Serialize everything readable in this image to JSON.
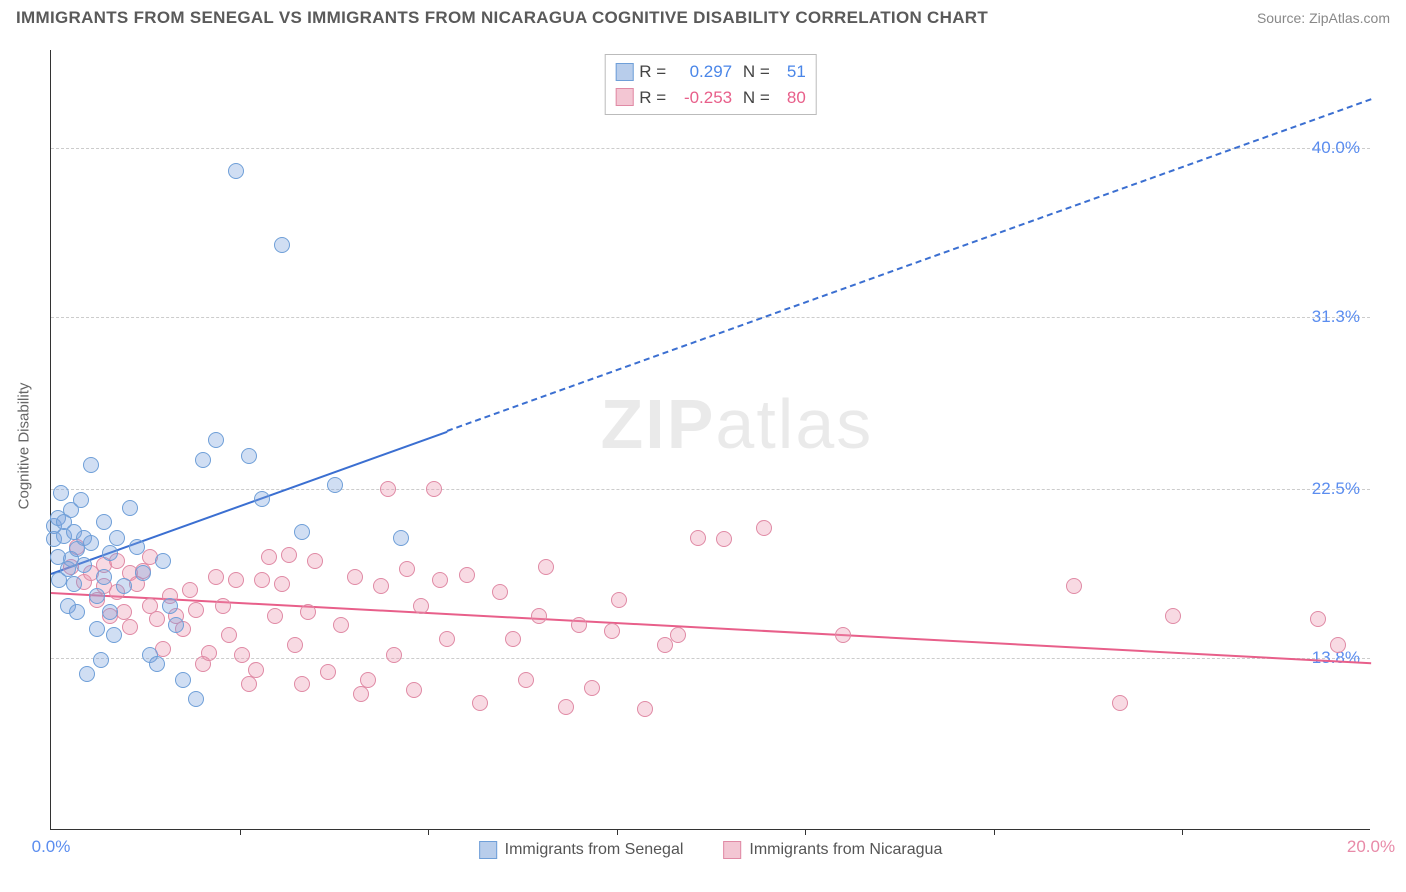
{
  "title": "IMMIGRANTS FROM SENEGAL VS IMMIGRANTS FROM NICARAGUA COGNITIVE DISABILITY CORRELATION CHART",
  "source": "Source: ZipAtlas.com",
  "ylabel": "Cognitive Disability",
  "watermark_bold": "ZIP",
  "watermark_light": "atlas",
  "xlim": [
    0,
    20
  ],
  "ylim": [
    5,
    45
  ],
  "xtick_labels": [
    "0.0%",
    "20.0%"
  ],
  "xtick_positions": [
    0,
    20
  ],
  "xtick_marks": [
    2.857,
    5.714,
    8.571,
    11.429,
    14.286,
    17.143
  ],
  "ytick_labels": [
    "13.8%",
    "22.5%",
    "31.3%",
    "40.0%"
  ],
  "ytick_positions": [
    13.8,
    22.5,
    31.3,
    40.0
  ],
  "ytick_color": "#5b8def",
  "xtick_color_start": "#5b8def",
  "xtick_color_end": "#e88aa8",
  "grid_color": "#cccccc",
  "series": {
    "senegal": {
      "label": "Immigrants from Senegal",
      "color_fill": "rgba(120,160,220,0.35)",
      "color_stroke": "#6f9fd8",
      "legend_swatch_fill": "#b8cdeb",
      "legend_swatch_stroke": "#6f9fd8",
      "r": 0.297,
      "n": 51,
      "stat_color": "#4a86e8",
      "trend": {
        "x1": 0,
        "y1": 18.2,
        "x2": 20,
        "y2": 42.5,
        "color": "#3b6fd1",
        "solid_until_x": 6.0
      },
      "points": [
        [
          0.05,
          20.6
        ],
        [
          0.05,
          19.9
        ],
        [
          0.1,
          21.0
        ],
        [
          0.1,
          19.0
        ],
        [
          0.12,
          17.8
        ],
        [
          0.15,
          22.3
        ],
        [
          0.2,
          20.1
        ],
        [
          0.2,
          20.8
        ],
        [
          0.25,
          18.4
        ],
        [
          0.25,
          16.5
        ],
        [
          0.3,
          18.9
        ],
        [
          0.3,
          21.4
        ],
        [
          0.35,
          20.3
        ],
        [
          0.35,
          17.6
        ],
        [
          0.4,
          16.2
        ],
        [
          0.4,
          19.4
        ],
        [
          0.45,
          21.9
        ],
        [
          0.5,
          18.6
        ],
        [
          0.5,
          20.0
        ],
        [
          0.55,
          13.0
        ],
        [
          0.6,
          19.7
        ],
        [
          0.6,
          23.7
        ],
        [
          0.7,
          15.3
        ],
        [
          0.7,
          17.0
        ],
        [
          0.75,
          13.7
        ],
        [
          0.8,
          18.0
        ],
        [
          0.8,
          20.8
        ],
        [
          0.9,
          19.2
        ],
        [
          0.9,
          16.2
        ],
        [
          0.95,
          15.0
        ],
        [
          1.0,
          20.0
        ],
        [
          1.1,
          17.5
        ],
        [
          1.2,
          21.5
        ],
        [
          1.3,
          19.5
        ],
        [
          1.4,
          18.2
        ],
        [
          1.5,
          14.0
        ],
        [
          1.6,
          13.5
        ],
        [
          1.7,
          18.8
        ],
        [
          1.8,
          16.5
        ],
        [
          1.9,
          15.5
        ],
        [
          2.0,
          12.7
        ],
        [
          2.2,
          11.7
        ],
        [
          2.3,
          24.0
        ],
        [
          2.5,
          25.0
        ],
        [
          2.8,
          38.8
        ],
        [
          3.0,
          24.2
        ],
        [
          3.2,
          22.0
        ],
        [
          3.5,
          35.0
        ],
        [
          3.8,
          20.3
        ],
        [
          4.3,
          22.7
        ],
        [
          5.3,
          20.0
        ]
      ]
    },
    "nicaragua": {
      "label": "Immigrants from Nicaragua",
      "color_fill": "rgba(235,150,175,0.35)",
      "color_stroke": "#e08aa5",
      "legend_swatch_fill": "#f3c6d3",
      "legend_swatch_stroke": "#e08aa5",
      "r": -0.253,
      "n": 80,
      "stat_color": "#e85f8a",
      "trend": {
        "x1": 0,
        "y1": 17.2,
        "x2": 20,
        "y2": 13.6,
        "color": "#e85f8a",
        "solid_until_x": 20
      },
      "points": [
        [
          0.3,
          18.5
        ],
        [
          0.4,
          19.5
        ],
        [
          0.5,
          17.7
        ],
        [
          0.6,
          18.2
        ],
        [
          0.7,
          16.8
        ],
        [
          0.8,
          17.5
        ],
        [
          0.8,
          18.6
        ],
        [
          0.9,
          16.0
        ],
        [
          1.0,
          17.2
        ],
        [
          1.0,
          18.8
        ],
        [
          1.1,
          16.2
        ],
        [
          1.2,
          18.2
        ],
        [
          1.2,
          15.4
        ],
        [
          1.3,
          17.6
        ],
        [
          1.4,
          18.3
        ],
        [
          1.5,
          16.5
        ],
        [
          1.5,
          19.0
        ],
        [
          1.6,
          15.8
        ],
        [
          1.7,
          14.3
        ],
        [
          1.8,
          17.0
        ],
        [
          1.9,
          16.0
        ],
        [
          2.0,
          15.3
        ],
        [
          2.1,
          17.3
        ],
        [
          2.2,
          16.3
        ],
        [
          2.3,
          13.5
        ],
        [
          2.4,
          14.1
        ],
        [
          2.5,
          18.0
        ],
        [
          2.6,
          16.5
        ],
        [
          2.7,
          15.0
        ],
        [
          2.8,
          17.8
        ],
        [
          2.9,
          14.0
        ],
        [
          3.0,
          12.5
        ],
        [
          3.1,
          13.2
        ],
        [
          3.2,
          17.8
        ],
        [
          3.3,
          19.0
        ],
        [
          3.4,
          16.0
        ],
        [
          3.5,
          17.6
        ],
        [
          3.6,
          19.1
        ],
        [
          3.7,
          14.5
        ],
        [
          3.8,
          12.5
        ],
        [
          3.9,
          16.2
        ],
        [
          4.0,
          18.8
        ],
        [
          4.2,
          13.1
        ],
        [
          4.4,
          15.5
        ],
        [
          4.6,
          18.0
        ],
        [
          4.7,
          12.0
        ],
        [
          4.8,
          12.7
        ],
        [
          5.0,
          17.5
        ],
        [
          5.1,
          22.5
        ],
        [
          5.2,
          14.0
        ],
        [
          5.4,
          18.4
        ],
        [
          5.5,
          12.2
        ],
        [
          5.6,
          16.5
        ],
        [
          5.8,
          22.5
        ],
        [
          5.9,
          17.8
        ],
        [
          6.0,
          14.8
        ],
        [
          6.3,
          18.1
        ],
        [
          6.5,
          11.5
        ],
        [
          6.8,
          17.2
        ],
        [
          7.0,
          14.8
        ],
        [
          7.2,
          12.7
        ],
        [
          7.4,
          16.0
        ],
        [
          7.5,
          18.5
        ],
        [
          7.8,
          11.3
        ],
        [
          8.0,
          15.5
        ],
        [
          8.2,
          12.3
        ],
        [
          8.5,
          15.2
        ],
        [
          8.6,
          16.8
        ],
        [
          9.0,
          11.2
        ],
        [
          9.3,
          14.5
        ],
        [
          9.5,
          15.0
        ],
        [
          9.8,
          20.0
        ],
        [
          10.2,
          19.9
        ],
        [
          10.8,
          20.5
        ],
        [
          12.0,
          15.0
        ],
        [
          15.5,
          17.5
        ],
        [
          16.2,
          11.5
        ],
        [
          17.0,
          16.0
        ],
        [
          19.2,
          15.8
        ],
        [
          19.5,
          14.5
        ]
      ]
    }
  }
}
